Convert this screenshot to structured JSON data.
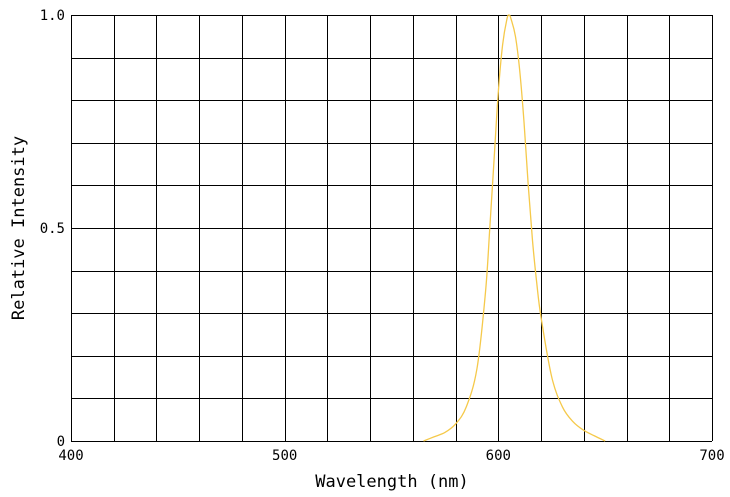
{
  "chart_data": {
    "type": "line",
    "title": "",
    "xlabel": "Wavelength (nm)",
    "ylabel": "Relative Intensity",
    "xlim": [
      400,
      700
    ],
    "ylim": [
      0,
      1.0
    ],
    "x_ticks": [
      400,
      500,
      600,
      700
    ],
    "x_tick_labels": [
      "400",
      "500",
      "600",
      "700"
    ],
    "y_ticks": [
      0,
      0.5,
      1.0
    ],
    "y_tick_labels": [
      "0",
      "0.5",
      "1.0"
    ],
    "x_grid_step": 20,
    "y_grid_step": 0.1,
    "grid": true,
    "legend": "none",
    "series": [
      {
        "color": "#f5c94a",
        "x": [
          565,
          570,
          575,
          580,
          585,
          590,
          594,
          596,
          598,
          600,
          602,
          604,
          605,
          606,
          608,
          610,
          612,
          614,
          616,
          618,
          620,
          625,
          630,
          635,
          640,
          645,
          650
        ],
        "y": [
          0.0,
          0.01,
          0.02,
          0.04,
          0.08,
          0.17,
          0.35,
          0.5,
          0.66,
          0.82,
          0.93,
          0.99,
          1.0,
          0.99,
          0.95,
          0.87,
          0.75,
          0.6,
          0.47,
          0.37,
          0.29,
          0.15,
          0.08,
          0.045,
          0.025,
          0.012,
          0.0
        ]
      }
    ]
  }
}
